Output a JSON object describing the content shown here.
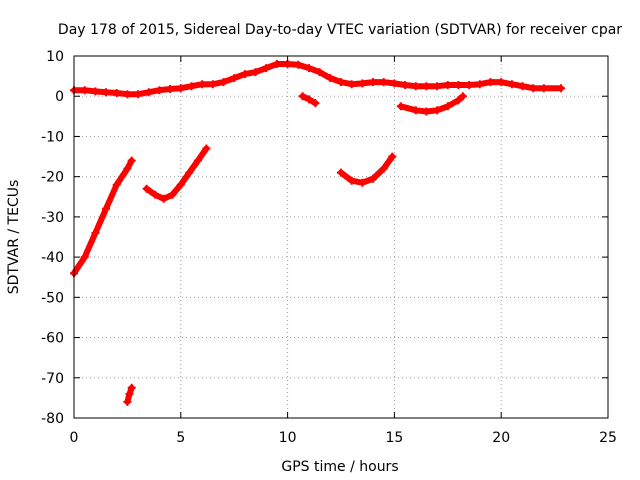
{
  "chart_data": {
    "type": "line",
    "title": "Day 178 of 2015, Sidereal Day-to-day VTEC variation (SDTVAR) for receiver cpar",
    "xlabel": "GPS time / hours",
    "ylabel": "SDTVAR / TECUs",
    "xlim": [
      0,
      25
    ],
    "ylim": [
      -80,
      10
    ],
    "xticks": [
      0,
      5,
      10,
      15,
      20,
      25
    ],
    "xtick_labels": [
      "0",
      "5",
      "10",
      "15",
      "20",
      "25"
    ],
    "yticks": [
      10,
      0,
      -10,
      -20,
      -30,
      -40,
      -50,
      -60,
      -70,
      -80
    ],
    "ytick_labels": [
      "10",
      "0",
      "-10",
      "-20",
      "-30",
      "-40",
      "-50",
      "-60",
      "-70",
      "-80"
    ],
    "grid": true,
    "legend": "none",
    "series_color": "#ff0000",
    "series": [
      {
        "name": "arc-main-top",
        "x": [
          0,
          0.5,
          1,
          1.5,
          2,
          2.5,
          3,
          3.5,
          4,
          4.5,
          5,
          5.5,
          6,
          6.5,
          7,
          7.5,
          8,
          8.5,
          9,
          9.5,
          10,
          10.5,
          11,
          11.5,
          12,
          12.5,
          13,
          13.5,
          14,
          14.5,
          15,
          15.5,
          16,
          16.5,
          17,
          17.5,
          18,
          18.5,
          19,
          19.5,
          20,
          20.5,
          21,
          21.5,
          22,
          22.8
        ],
        "y": [
          1.5,
          1.5,
          1.2,
          1.0,
          0.8,
          0.5,
          0.5,
          1.0,
          1.5,
          1.8,
          2.0,
          2.5,
          3.0,
          3.0,
          3.5,
          4.5,
          5.5,
          6.0,
          7.0,
          8.0,
          8.0,
          7.8,
          7.0,
          6.0,
          4.5,
          3.5,
          3.0,
          3.2,
          3.5,
          3.5,
          3.2,
          2.8,
          2.5,
          2.5,
          2.5,
          2.8,
          2.8,
          2.8,
          3.0,
          3.5,
          3.5,
          3.0,
          2.5,
          2.0,
          2.0,
          2.0
        ]
      },
      {
        "name": "arc-steep-rise",
        "x": [
          0,
          0.5,
          1,
          1.5,
          2,
          2.5,
          2.7
        ],
        "y": [
          -44,
          -40,
          -34,
          -28,
          -22,
          -18,
          -16
        ]
      },
      {
        "name": "arc-low-tail",
        "x": [
          2.5,
          2.6,
          2.7
        ],
        "y": [
          -76,
          -74,
          -72.5
        ]
      },
      {
        "name": "arc-dip-rise",
        "x": [
          3.4,
          3.8,
          4.2,
          4.6,
          5.0,
          5.4,
          5.8,
          6.2
        ],
        "y": [
          -23,
          -24.5,
          -25.5,
          -24.5,
          -22,
          -19,
          -16,
          -13
        ]
      },
      {
        "name": "arc-small-10h",
        "x": [
          10.7,
          11.0,
          11.3
        ],
        "y": [
          0,
          -0.8,
          -1.7
        ]
      },
      {
        "name": "arc-u-13h",
        "x": [
          12.5,
          13.0,
          13.5,
          14.0,
          14.5,
          14.9
        ],
        "y": [
          -19,
          -21,
          -21.5,
          -20.5,
          -18,
          -15
        ]
      },
      {
        "name": "arc-shallow-16h",
        "x": [
          15.3,
          16.0,
          16.5,
          17.0,
          17.5,
          18.0,
          18.2
        ],
        "y": [
          -2.5,
          -3.5,
          -3.8,
          -3.5,
          -2.5,
          -1.0,
          0
        ]
      }
    ]
  }
}
